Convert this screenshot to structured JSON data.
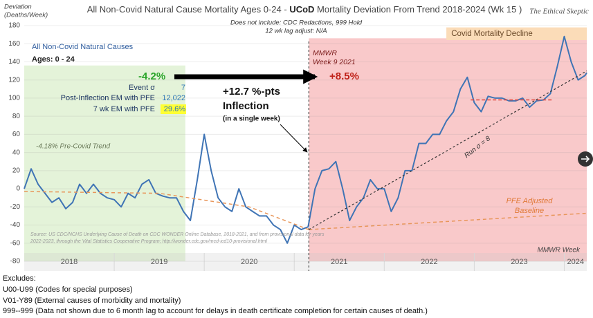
{
  "chart_data": {
    "type": "line",
    "title_parts": [
      "All Non-Covid Natural Cause Mortality Ages 0-24 - ",
      "UCoD",
      " Mortality Deviation From Trend  2018-2024 (Wk 15 )"
    ],
    "brand": "The Ethical Skeptic",
    "subtitle": [
      "Does not include: CDC Redactions, 999 Hold",
      "12 wk lag adjust: N/A"
    ],
    "y_label": [
      "Deviation",
      "(Deaths/Week)"
    ],
    "xlim": [
      2018,
      2024.25
    ],
    "ylim": [
      -80,
      180
    ],
    "yticks": [
      -80,
      -60,
      -40,
      -20,
      0,
      20,
      40,
      60,
      80,
      100,
      120,
      140,
      160,
      180
    ],
    "xticks": [
      {
        "value": 2018.5,
        "label": "2018"
      },
      {
        "value": 2019.5,
        "label": "2019"
      },
      {
        "value": 2020.5,
        "label": "2020"
      },
      {
        "value": 2021.5,
        "label": "2021"
      },
      {
        "value": 2022.5,
        "label": "2022"
      },
      {
        "value": 2023.5,
        "label": "2023"
      },
      {
        "value": 2024.125,
        "label": "2024"
      }
    ],
    "year_bounds": [
      2019,
      2020,
      2021,
      2022,
      2023,
      2024
    ],
    "grid": true,
    "regions": [
      {
        "x": [
          2018,
          2019.79
        ],
        "y": [
          -80,
          136
        ],
        "color": "#e4f3d9"
      },
      {
        "x": [
          2021.162,
          2024.25
        ],
        "y": [
          -80,
          166
        ],
        "color": "#f9c9ca"
      },
      {
        "x": [
          2022.69,
          2024.25
        ],
        "y": [
          164,
          178
        ],
        "color": "#fbdcb8"
      }
    ],
    "marker_x": 2021.162,
    "series": [
      {
        "color": "#3f74b5",
        "width": 2,
        "x": [
          2018,
          2018.077,
          2018.154,
          2018.231,
          2018.308,
          2018.385,
          2018.462,
          2018.538,
          2018.615,
          2018.692,
          2018.769,
          2018.846,
          2018.923,
          2019,
          2019.077,
          2019.154,
          2019.231,
          2019.308,
          2019.385,
          2019.462,
          2019.538,
          2019.615,
          2019.692,
          2019.769,
          2019.846,
          2019.923,
          2020,
          2020.077,
          2020.154,
          2020.231,
          2020.308,
          2020.385,
          2020.462,
          2020.538,
          2020.615,
          2020.692,
          2020.769,
          2020.846,
          2020.923,
          2021,
          2021.077,
          2021.154,
          2021.231,
          2021.308,
          2021.385,
          2021.462,
          2021.538,
          2021.615,
          2021.692,
          2021.769,
          2021.846,
          2021.923,
          2022,
          2022.077,
          2022.154,
          2022.231,
          2022.308,
          2022.385,
          2022.462,
          2022.538,
          2022.615,
          2022.692,
          2022.769,
          2022.846,
          2022.923,
          2023,
          2023.077,
          2023.154,
          2023.231,
          2023.308,
          2023.385,
          2023.462,
          2023.538,
          2023.615,
          2023.692,
          2023.769,
          2023.846,
          2023.923,
          2024,
          2024.077,
          2024.154,
          2024.231,
          2024.25
        ],
        "values": [
          0,
          22,
          5,
          -5,
          -15,
          -10,
          -22,
          -15,
          5,
          -5,
          5,
          -5,
          -10,
          -12,
          -20,
          -5,
          -10,
          5,
          10,
          -5,
          -8,
          -10,
          -10,
          -25,
          -35,
          10,
          60,
          20,
          -10,
          -20,
          -25,
          0,
          -20,
          -25,
          -30,
          -30,
          -40,
          -45,
          -60,
          -40,
          -45,
          -42,
          0,
          20,
          22,
          30,
          0,
          -35,
          -20,
          -10,
          10,
          0,
          0,
          -25,
          -10,
          20,
          20,
          50,
          50,
          60,
          60,
          75,
          85,
          110,
          123,
          95,
          85,
          102,
          100,
          100,
          97,
          97,
          100,
          90,
          97,
          98,
          105,
          135,
          168,
          140,
          120,
          125,
          128
        ]
      },
      {
        "color": "#e8965a",
        "width": 1.5,
        "dash": "5 4",
        "x": [
          2018,
          2019.5,
          2020.5,
          2021.162
        ],
        "values": [
          -3,
          -5,
          -20,
          -45
        ]
      },
      {
        "color": "#e8965a",
        "width": 1.5,
        "dash": "5 4",
        "x": [
          2021.162,
          2024.25
        ],
        "values": [
          -45,
          -27
        ]
      },
      {
        "color": "#333333",
        "width": 1.2,
        "dash": "3 3",
        "x": [
          2021.162,
          2024.25
        ],
        "values": [
          -45,
          130
        ]
      },
      {
        "color": "#e0443c",
        "width": 1.5,
        "dash": "5 3",
        "x": [
          2022.96,
          2023.88
        ],
        "values": [
          98,
          98
        ]
      }
    ],
    "series_label": "All Non-Covid Natural Causes",
    "ages": "Ages: 0 - 24",
    "stats": [
      [
        "Event σ",
        "7"
      ],
      [
        "Post-Inflection EM with PFE",
        "12,022"
      ],
      [
        "7 wk EM with PFE",
        "29.6%"
      ]
    ],
    "pre_change": "-4.2%",
    "post_change": "+8.5%",
    "inflection": [
      "+12.7 %-pts",
      "Inflection",
      "(in a single week)"
    ],
    "mmwr_marker": [
      "MMWR",
      "Week 9 2021"
    ],
    "decline_label": "Covid Mortality Decline",
    "run_label": "Run σ = 8",
    "pfe_label": [
      "PFE Adjusted",
      "Baseline"
    ],
    "trend_label": "-4.18% Pre-Covid Trend",
    "source": [
      "Source: US CDC/NCHS Underlying Cause of Death on CDC WONDER Online Database, 2018-2021, and from provisional data for years",
      "2022-2023, through the Vital Statistics Cooperative Program; http://wonder.cdc.gov/mcd-icd10-provisional.html"
    ],
    "x_note": "MMWR Week"
  },
  "excludes": [
    "Excludes:",
    "U00-U99 (Codes for special purposes)",
    "V01-Y89 (External causes of morbidity and mortality)",
    "999--999 (Data not shown due to 6 month lag to account for delays in death certificate completion for certain causes of death.)"
  ]
}
